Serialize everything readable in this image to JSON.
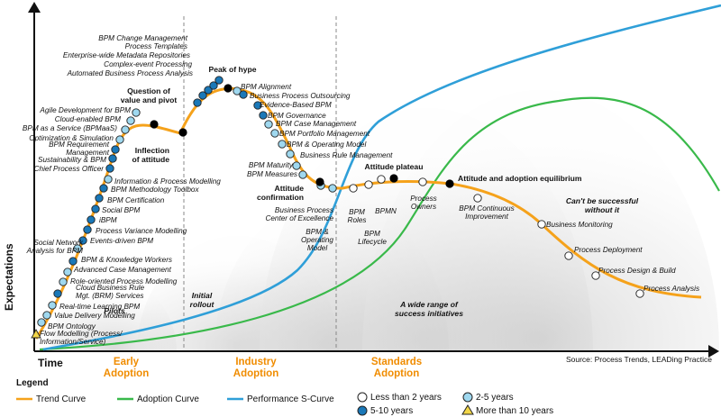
{
  "axes": {
    "y_label": "Expectations",
    "x_label": "Time"
  },
  "phases": [
    "Early",
    "Adoption",
    "Industry",
    "Adoption",
    "Standards",
    "Adoption"
  ],
  "source": "Source: Process Trends, LEADing Practice",
  "colors": {
    "trend": "#f5a21b",
    "adoption": "#39b94a",
    "performance": "#2f9fd8",
    "dot_10_plus": "#f2d648",
    "dot_5_10": "#1a78b8",
    "dot_2_5": "#9fd8ef",
    "dot_lt2": "#ffffff"
  },
  "region_labels": {
    "pilots": "Pilots",
    "initial_rollout": "Initial|rollout",
    "wide_range": "A wide range of|success initiatives",
    "cant_succeed": "Can't be successful|without it"
  },
  "milestones": {
    "question": "Question of|value and pivot",
    "inflection": "Inflection|of attitude",
    "peak": "Peak of hype",
    "confirmation": "Attitude|confirmation",
    "plateau": "Attitude plateau",
    "equilibrium": "Attitude and adoption equilibrium"
  },
  "trend_items": [
    {
      "label": "Flow Modelling (Process/|Information/Service)",
      "dot": "10+"
    },
    {
      "label": "BPM Ontology",
      "dot": "2-5"
    },
    {
      "label": "Value Delivery Modelling",
      "dot": "2-5"
    },
    {
      "label": "Real-time Learning BPM",
      "dot": "2-5"
    },
    {
      "label": "Cloud Business Rule|Mgt. (BRM) Services",
      "dot": "5-10"
    },
    {
      "label": "Role-oriented Process Modelling",
      "dot": "2-5"
    },
    {
      "label": "Advanced Case Management",
      "dot": "2-5"
    },
    {
      "label": "BPM & Knowledge Workers",
      "dot": "5-10"
    },
    {
      "label": "Social Network|Analysis for BPM",
      "dot": "2-5"
    },
    {
      "label": "Events-driven BPM",
      "dot": "5-10"
    },
    {
      "label": "Process Variance Modelling",
      "dot": "5-10"
    },
    {
      "label": "iBPM",
      "dot": "5-10"
    },
    {
      "label": "Social BPM",
      "dot": "5-10"
    },
    {
      "label": "BPM Certification",
      "dot": "5-10"
    },
    {
      "label": "BPM Methodology Toolbox",
      "dot": "5-10"
    },
    {
      "label": "Information & Process Modelling",
      "dot": "2-5"
    },
    {
      "label": "Chief Process Officer",
      "dot": "5-10"
    },
    {
      "label": "Sustainability & BPM",
      "dot": "5-10"
    },
    {
      "label": "BPM Requirement|Management",
      "dot": "5-10"
    },
    {
      "label": "Optimization & Simulation",
      "dot": "2-5"
    },
    {
      "label": "BPM as a Service (BPMaaS)",
      "dot": "2-5"
    },
    {
      "label": "Cloud-enabled BPM",
      "dot": "2-5"
    },
    {
      "label": "Agile Development for BPM",
      "dot": "2-5"
    },
    {
      "label": "Automated Business Process Analysis",
      "dot": "5-10"
    },
    {
      "label": "Complex-event Processing",
      "dot": "5-10"
    },
    {
      "label": "Enterprise-wide Metadata Repositories",
      "dot": "5-10"
    },
    {
      "label": "Process Templates",
      "dot": "5-10"
    },
    {
      "label": "BPM Change Management",
      "dot": "5-10"
    },
    {
      "label": "BPM Alignment",
      "dot": "2-5"
    },
    {
      "label": "Business Process Outsourcing",
      "dot": "5-10"
    },
    {
      "label": "Evidence-Based BPM",
      "dot": "5-10"
    },
    {
      "label": "BPM Governance",
      "dot": "5-10"
    },
    {
      "label": "BPM Case Management",
      "dot": "2-5"
    },
    {
      "label": "BPM Portfolio Management",
      "dot": "2-5"
    },
    {
      "label": "BPM & Operating Model",
      "dot": "2-5"
    },
    {
      "label": "Business Rule Management",
      "dot": "2-5"
    },
    {
      "label": "BPM Maturity",
      "dot": "2-5"
    },
    {
      "label": "BPM Measures",
      "dot": "2-5"
    },
    {
      "label": "Business Process|Center of Excellence",
      "dot": "2-5"
    },
    {
      "label": "BPM &|Operating|Model",
      "dot": "2-5"
    },
    {
      "label": "BPM|Roles",
      "dot": "<2"
    },
    {
      "label": "BPM|Lifecycle",
      "dot": "<2"
    },
    {
      "label": "BPMN",
      "dot": "<2"
    },
    {
      "label": "Process|Owners",
      "dot": "<2"
    },
    {
      "label": "BPM Continuous|Improvement",
      "dot": "<2"
    },
    {
      "label": "Business Monitoring",
      "dot": "<2"
    },
    {
      "label": "Process Deployment",
      "dot": "<2"
    },
    {
      "label": "Process Design & Build",
      "dot": "<2"
    },
    {
      "label": "Process Analysis",
      "dot": "<2"
    }
  ],
  "legend": {
    "title": "Legend",
    "trend": "Trend Curve",
    "adoption": "Adoption Curve",
    "performance": "Performance S-Curve",
    "lt2": "Less than 2 years",
    "y2_5": "2-5 years",
    "y5_10": "5-10 years",
    "y10_plus": "More than 10 years"
  }
}
